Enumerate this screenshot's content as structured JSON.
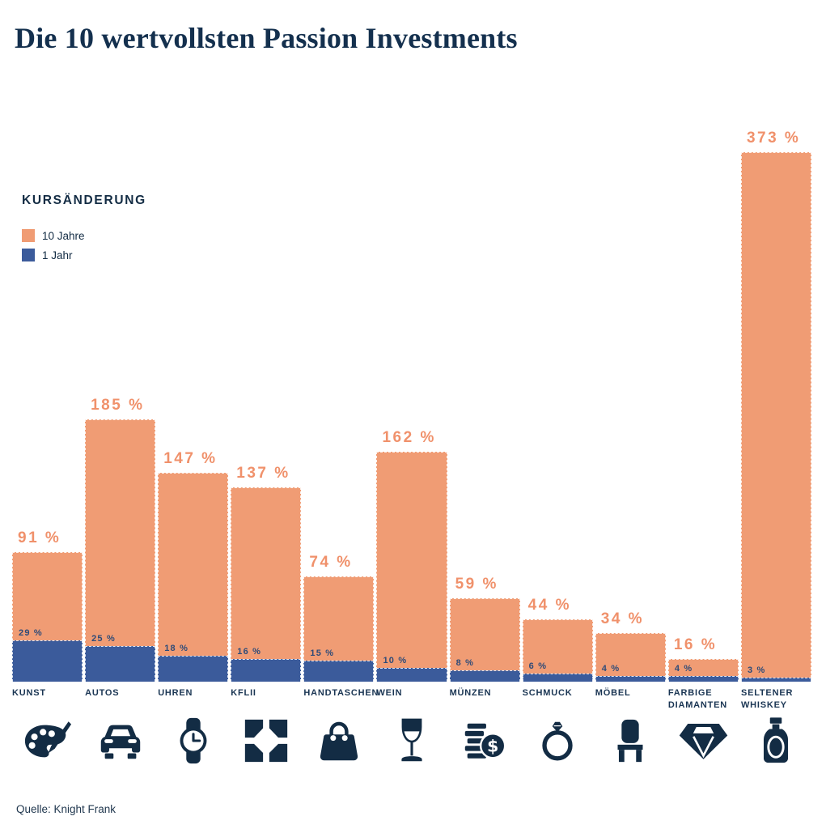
{
  "title": "Die 10 wertvollsten Passion Investments",
  "legend": {
    "heading": "KURSÄNDERUNG",
    "items": [
      {
        "label": "10 Jahre",
        "color": "#F09C74"
      },
      {
        "label": "1 Jahr",
        "color": "#3B5B9B"
      }
    ]
  },
  "source": "Quelle: Knight Frank",
  "colors": {
    "orange": "#F09C74",
    "blue": "#3B5B9B",
    "navy": "#132C44",
    "value_label_blue": "#2E4B78"
  },
  "chart_data": {
    "type": "bar",
    "title": "Die 10 wertvollsten Passion Investments",
    "unit": "%",
    "ylim": [
      0,
      373
    ],
    "grid": false,
    "legend_position": "upper-left",
    "categories": [
      "KUNST",
      "AUTOS",
      "UHREN",
      "KFLII",
      "HANDTASCHEN",
      "WEIN",
      "MÜNZEN",
      "SCHMUCK",
      "MÖBEL",
      "FARBIGE DIAMANTEN",
      "SELTENER WHISKEY"
    ],
    "icons": [
      "palette",
      "car",
      "watch",
      "kflii-logo",
      "handbag",
      "wine-glass",
      "coins-dollar",
      "ring",
      "chair",
      "diamond",
      "whiskey-bottle"
    ],
    "series": [
      {
        "name": "10 Jahre",
        "color": "#F09C74",
        "values": [
          91,
          185,
          147,
          137,
          74,
          162,
          59,
          44,
          34,
          16,
          373
        ],
        "labels": [
          "91 %",
          "185 %",
          "147 %",
          "137 %",
          "74 %",
          "162 %",
          "59 %",
          "44 %",
          "34 %",
          "16 %",
          "373 %"
        ]
      },
      {
        "name": "1 Jahr",
        "color": "#3B5B9B",
        "values": [
          29,
          25,
          18,
          16,
          15,
          10,
          8,
          6,
          4,
          4,
          3
        ],
        "labels": [
          "29 %",
          "25 %",
          "18 %",
          "16 %",
          "15 %",
          "10 %",
          "8 %",
          "6 %",
          "4 %",
          "4 %",
          "3 %"
        ]
      }
    ]
  }
}
